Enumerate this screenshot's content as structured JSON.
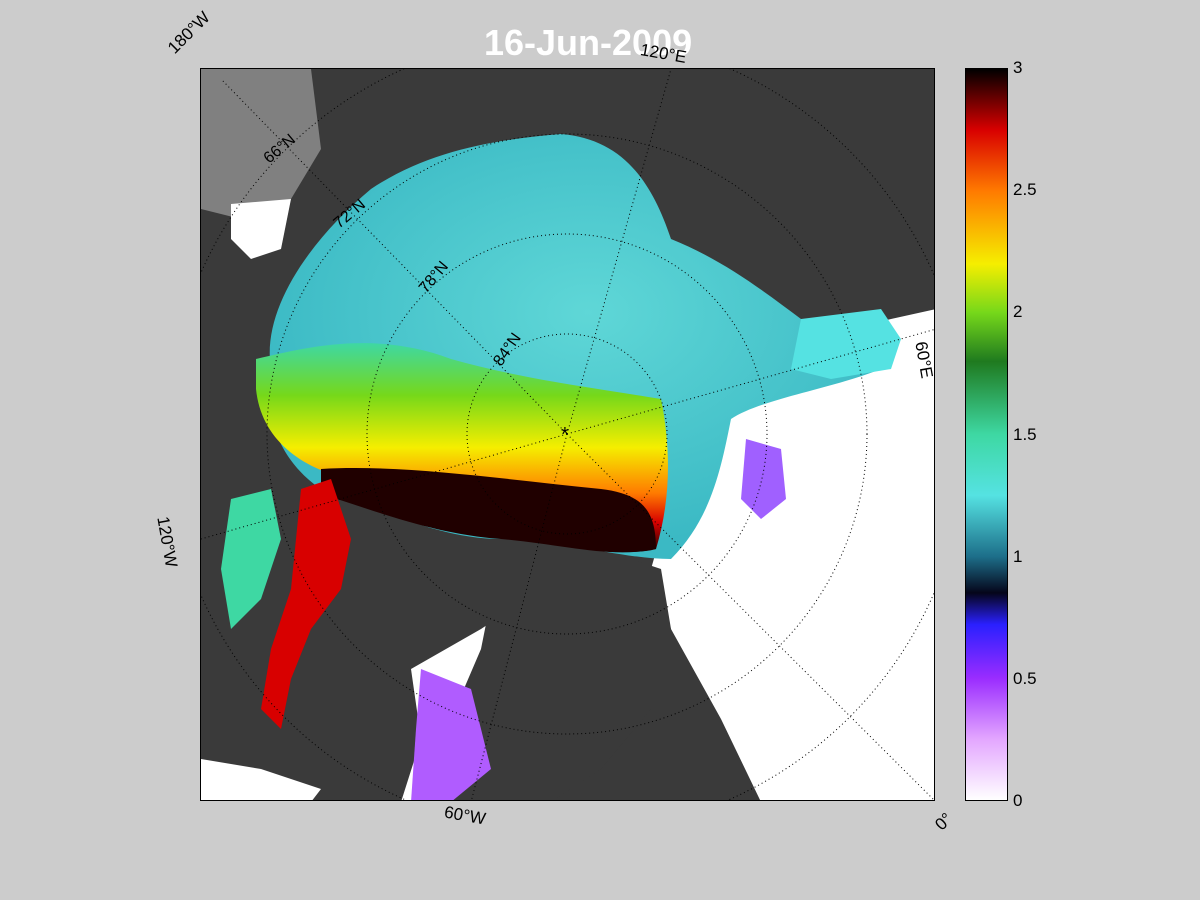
{
  "map": {
    "date": "16-Jun-2009",
    "pole_marker": "*",
    "longitude_labels": {
      "lon_180w": "180°W",
      "lon_120e": "120°E",
      "lon_60e": "60°E",
      "lon_120w": "120°W",
      "lon_60w": "60°W",
      "lon_0": "0°"
    },
    "latitude_labels": {
      "lat_66n": "66°N",
      "lat_72n": "72°N",
      "lat_78n": "78°N",
      "lat_84n": "84°N"
    },
    "colors": {
      "frame_background": "#cccccc",
      "land": "#3a3a3a",
      "open_water": "#ffffff",
      "grid_lines": "#000000"
    }
  },
  "colorbar": {
    "min": 0,
    "max": 3,
    "tick_labels": [
      "0",
      "0.5",
      "1",
      "1.5",
      "2",
      "2.5",
      "3"
    ],
    "gradient": [
      {
        "value": 0.0,
        "color": "#ffffff"
      },
      {
        "value": 0.25,
        "color": "#e3a6ff"
      },
      {
        "value": 0.5,
        "color": "#9a2cff"
      },
      {
        "value": 0.72,
        "color": "#2a20ff"
      },
      {
        "value": 0.85,
        "color": "#05051a"
      },
      {
        "value": 1.0,
        "color": "#1d6f8a"
      },
      {
        "value": 1.25,
        "color": "#55e2e2"
      },
      {
        "value": 1.5,
        "color": "#3ed8a3"
      },
      {
        "value": 1.8,
        "color": "#1f7a1f"
      },
      {
        "value": 2.0,
        "color": "#76d81a"
      },
      {
        "value": 2.2,
        "color": "#f5ee00"
      },
      {
        "value": 2.5,
        "color": "#ff7a00"
      },
      {
        "value": 2.75,
        "color": "#d80000"
      },
      {
        "value": 3.0,
        "color": "#000000"
      }
    ]
  }
}
